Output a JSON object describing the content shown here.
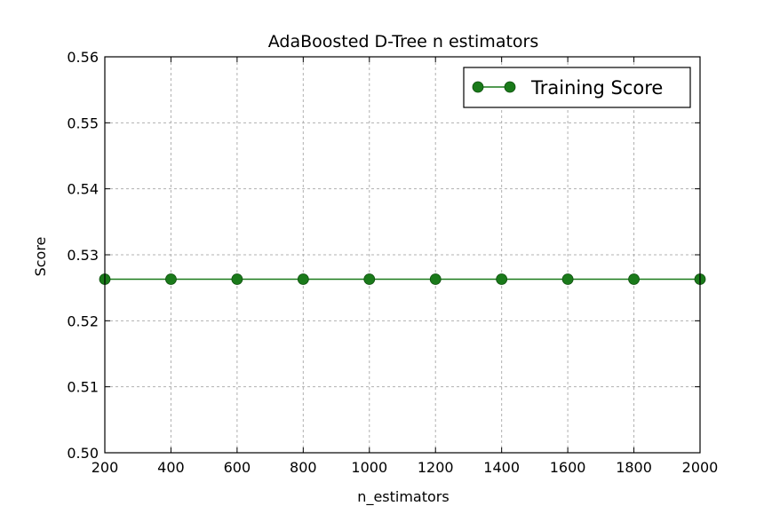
{
  "chart_data": {
    "type": "line",
    "title": "AdaBoosted D-Tree n estimators",
    "xlabel": "n_estimators",
    "ylabel": "Score",
    "xlim": [
      200,
      2000
    ],
    "ylim": [
      0.5,
      0.56
    ],
    "xticks": [
      200,
      400,
      600,
      800,
      1000,
      1200,
      1400,
      1600,
      1800,
      2000
    ],
    "yticks": [
      "0.50",
      "0.51",
      "0.52",
      "0.53",
      "0.54",
      "0.55",
      "0.56"
    ],
    "grid": true,
    "legend_position": "top-right",
    "series": [
      {
        "name": "Training Score",
        "color": "#1a7a1a",
        "marker": "circle",
        "x": [
          200,
          400,
          600,
          800,
          1000,
          1200,
          1400,
          1600,
          1800,
          2000
        ],
        "y": [
          0.5263,
          0.5263,
          0.5263,
          0.5263,
          0.5263,
          0.5263,
          0.5263,
          0.5263,
          0.5263,
          0.5263
        ]
      }
    ]
  }
}
